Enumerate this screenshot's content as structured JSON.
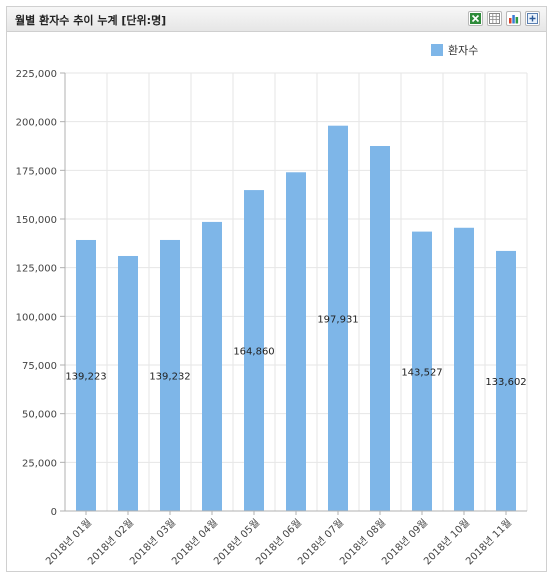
{
  "header": {
    "title": "월별 환자수 추이 누계 [단위:명]",
    "tools": [
      {
        "icon": "excel-export-icon"
      },
      {
        "icon": "table-view-icon"
      },
      {
        "icon": "bar-chart-icon"
      },
      {
        "icon": "expand-icon"
      }
    ]
  },
  "colors": {
    "bar": "#7eb6e8",
    "grid": "#e6e6e6",
    "axis": "#b0b0b0",
    "text": "#444444"
  },
  "chart_data": {
    "type": "bar",
    "title": "",
    "xlabel": "",
    "ylabel": "",
    "categories": [
      "2018년 01월",
      "2018년 02월",
      "2018년 03월",
      "2018년 04월",
      "2018년 05월",
      "2018년 06월",
      "2018년 07월",
      "2018년 08월",
      "2018년 09월",
      "2018년 10월",
      "2018년 11월"
    ],
    "series": [
      {
        "name": "환자수",
        "values": [
          139223,
          131000,
          139232,
          148500,
          164860,
          174000,
          197931,
          187500,
          143527,
          145500,
          133602
        ]
      }
    ],
    "data_labels": [
      {
        "index": 0,
        "text": "139,223"
      },
      {
        "index": 2,
        "text": "139,232"
      },
      {
        "index": 4,
        "text": "164,860"
      },
      {
        "index": 6,
        "text": "197,931"
      },
      {
        "index": 8,
        "text": "143,527"
      },
      {
        "index": 10,
        "text": "133,602"
      }
    ],
    "ylim": [
      0,
      225000
    ],
    "yticks": [
      0,
      25000,
      50000,
      75000,
      100000,
      125000,
      150000,
      175000,
      200000,
      225000
    ],
    "ytick_labels": [
      "0",
      "25,000",
      "50,000",
      "75,000",
      "100,000",
      "125,000",
      "150,000",
      "175,000",
      "200,000",
      "225,000"
    ],
    "grid": true,
    "legend": "top-right"
  }
}
